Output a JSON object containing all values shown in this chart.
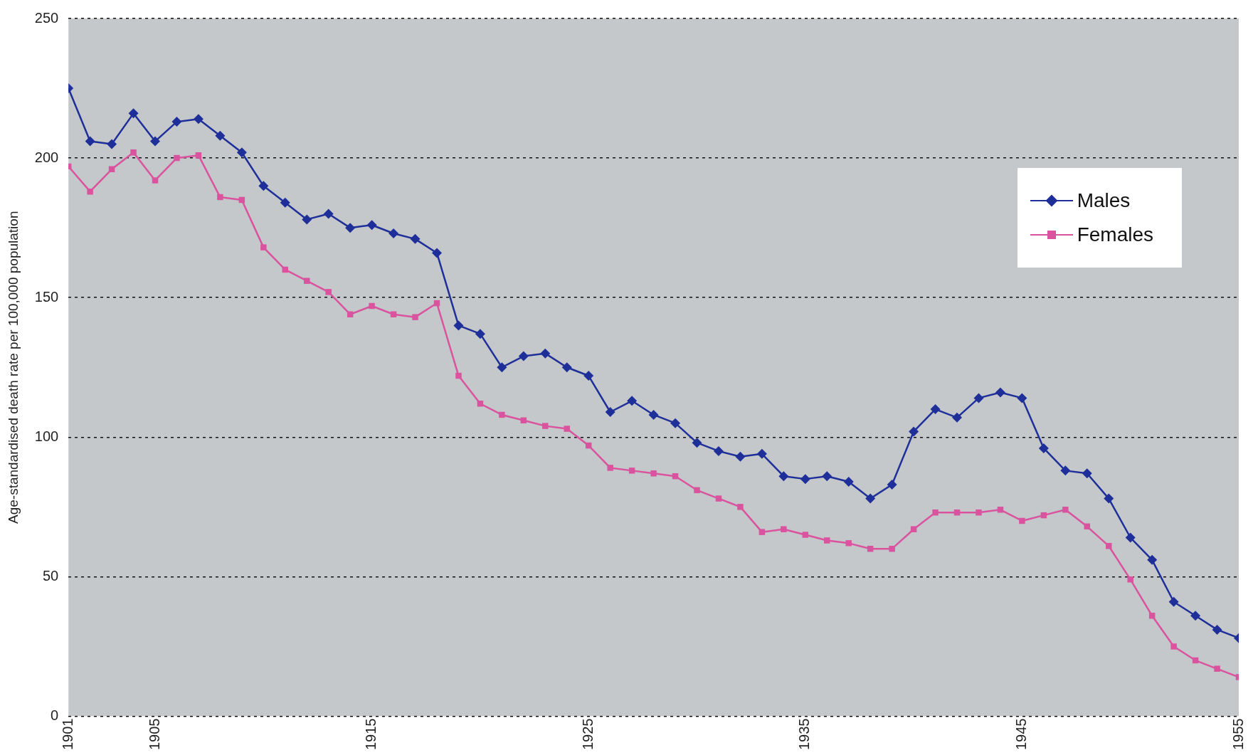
{
  "chart_data": {
    "type": "line",
    "ylabel": "Age-standardised death rate per 100,000 population",
    "x": [
      1901,
      1902,
      1903,
      1904,
      1905,
      1906,
      1907,
      1908,
      1909,
      1910,
      1911,
      1912,
      1913,
      1914,
      1915,
      1916,
      1917,
      1918,
      1919,
      1920,
      1921,
      1922,
      1923,
      1924,
      1925,
      1926,
      1927,
      1928,
      1929,
      1930,
      1931,
      1932,
      1933,
      1934,
      1935,
      1936,
      1937,
      1938,
      1939,
      1940,
      1941,
      1942,
      1943,
      1944,
      1945,
      1946,
      1947,
      1948,
      1949,
      1950,
      1951,
      1952,
      1953,
      1954,
      1955
    ],
    "xlim": [
      1901,
      1955
    ],
    "xticks": [
      1901,
      1905,
      1915,
      1925,
      1935,
      1945,
      1955
    ],
    "ylim": [
      0,
      250
    ],
    "yticks": [
      0,
      50,
      100,
      150,
      200,
      250
    ],
    "grid": "y",
    "legend": "top right",
    "line_style": "solid",
    "series": [
      {
        "name": "Males",
        "color": "#1f2f9a",
        "marker": "diamond",
        "values": [
          225,
          206,
          205,
          216,
          206,
          213,
          214,
          208,
          202,
          190,
          184,
          178,
          180,
          175,
          176,
          173,
          171,
          166,
          140,
          137,
          125,
          129,
          130,
          125,
          122,
          109,
          113,
          108,
          105,
          98,
          95,
          93,
          94,
          86,
          85,
          86,
          84,
          78,
          83,
          102,
          110,
          107,
          114,
          116,
          114,
          96,
          88,
          87,
          78,
          64,
          56,
          41,
          36,
          31,
          28
        ]
      },
      {
        "name": "Females",
        "color": "#d9539f",
        "marker": "square",
        "values": [
          197,
          188,
          196,
          202,
          192,
          200,
          201,
          186,
          185,
          168,
          160,
          156,
          152,
          144,
          147,
          144,
          143,
          148,
          122,
          112,
          108,
          106,
          104,
          103,
          97,
          89,
          88,
          87,
          86,
          81,
          78,
          75,
          66,
          67,
          65,
          63,
          62,
          60,
          60,
          67,
          73,
          73,
          73,
          74,
          70,
          72,
          74,
          68,
          61,
          49,
          36,
          25,
          20,
          17,
          14
        ]
      }
    ]
  }
}
